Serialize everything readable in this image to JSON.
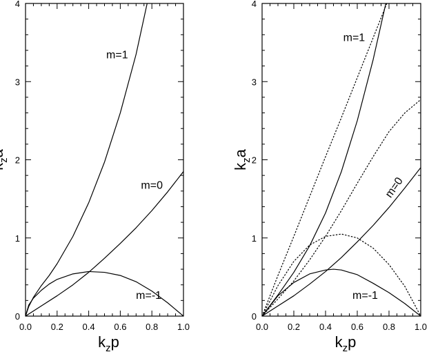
{
  "chart_data": [
    {
      "type": "line",
      "xlabel": {
        "base": "k",
        "sub": "z",
        "rest": "p"
      },
      "ylabel": {
        "base": "k",
        "sub": "z",
        "rest": "a"
      },
      "xlim": [
        0,
        1
      ],
      "ylim": [
        0,
        4
      ],
      "xticks": [
        "0.0",
        "0.2",
        "0.4",
        "0.6",
        "0.8",
        "1.0"
      ],
      "yticks": [
        "0",
        "1",
        "2",
        "3",
        "4"
      ],
      "grid": false,
      "series": [
        {
          "name": "m=1",
          "style": "solid",
          "x": [
            0,
            0.02,
            0.05,
            0.1,
            0.15,
            0.2,
            0.3,
            0.4,
            0.5,
            0.6,
            0.7,
            0.77
          ],
          "y": [
            0,
            0.12,
            0.24,
            0.39,
            0.52,
            0.67,
            1.02,
            1.45,
            1.97,
            2.6,
            3.35,
            4.0
          ]
        },
        {
          "name": "m=0",
          "style": "solid",
          "x": [
            0,
            0.1,
            0.2,
            0.3,
            0.4,
            0.5,
            0.6,
            0.7,
            0.8,
            0.9,
            1.0
          ],
          "y": [
            0,
            0.13,
            0.26,
            0.4,
            0.56,
            0.74,
            0.93,
            1.13,
            1.35,
            1.59,
            1.85
          ]
        },
        {
          "name": "m=-1",
          "style": "solid",
          "x": [
            0,
            0.02,
            0.05,
            0.1,
            0.15,
            0.2,
            0.3,
            0.4,
            0.5,
            0.6,
            0.7,
            0.8,
            0.9,
            1.0
          ],
          "y": [
            0,
            0.14,
            0.23,
            0.33,
            0.41,
            0.47,
            0.54,
            0.57,
            0.56,
            0.52,
            0.44,
            0.32,
            0.17,
            0
          ]
        }
      ],
      "annotations": [
        {
          "text": "m=1",
          "x": 0.58,
          "y": 3.3,
          "rotate": 0
        },
        {
          "text": "m=0",
          "x": 0.8,
          "y": 1.63,
          "rotate": 0
        },
        {
          "text": "m=-1",
          "x": 0.78,
          "y": 0.22,
          "rotate": 0
        }
      ]
    },
    {
      "type": "line",
      "xlabel": {
        "base": "k",
        "sub": "z",
        "rest": "p"
      },
      "ylabel": {
        "base": "k",
        "sub": "z",
        "rest": "a"
      },
      "xlim": [
        0,
        1
      ],
      "ylim": [
        0,
        4
      ],
      "xticks": [
        "0.0",
        "0.2",
        "0.4",
        "0.6",
        "0.8",
        "1.0"
      ],
      "yticks": [
        "0",
        "1",
        "2",
        "3",
        "4"
      ],
      "grid": false,
      "series": [
        {
          "name": "m=1",
          "style": "solid",
          "x": [
            0,
            0.1,
            0.2,
            0.3,
            0.4,
            0.5,
            0.6,
            0.7,
            0.78
          ],
          "y": [
            0,
            0.27,
            0.56,
            0.9,
            1.32,
            1.85,
            2.5,
            3.28,
            4.0
          ]
        },
        {
          "name": "m=0",
          "style": "solid",
          "x": [
            0,
            0.1,
            0.2,
            0.3,
            0.4,
            0.5,
            0.6,
            0.7,
            0.8,
            0.9,
            1.0
          ],
          "y": [
            0,
            0.13,
            0.26,
            0.41,
            0.57,
            0.75,
            0.95,
            1.16,
            1.39,
            1.64,
            1.9
          ]
        },
        {
          "name": "m=-1",
          "style": "solid",
          "x": [
            0,
            0.1,
            0.2,
            0.3,
            0.4,
            0.45,
            0.5,
            0.6,
            0.7,
            0.8,
            0.9,
            1.0
          ],
          "y": [
            0,
            0.26,
            0.43,
            0.54,
            0.59,
            0.6,
            0.59,
            0.53,
            0.42,
            0.3,
            0.16,
            0
          ]
        },
        {
          "style": "dotted",
          "x": [
            0,
            0.1,
            0.2,
            0.3,
            0.4,
            0.5,
            0.6,
            0.7,
            0.8
          ],
          "y": [
            0,
            0.52,
            1.02,
            1.53,
            2.04,
            2.54,
            3.05,
            3.56,
            4.07
          ]
        },
        {
          "style": "dotted",
          "x": [
            0,
            0.1,
            0.2,
            0.3,
            0.4,
            0.5,
            0.6,
            0.7,
            0.8,
            0.9,
            1.0
          ],
          "y": [
            0,
            0.22,
            0.45,
            0.72,
            1.02,
            1.35,
            1.7,
            2.04,
            2.36,
            2.6,
            2.77
          ]
        },
        {
          "style": "dotted",
          "x": [
            0,
            0.1,
            0.2,
            0.3,
            0.4,
            0.5,
            0.6,
            0.7,
            0.8,
            0.9,
            1.0
          ],
          "y": [
            0,
            0.39,
            0.7,
            0.91,
            1.02,
            1.05,
            1.0,
            0.87,
            0.66,
            0.38,
            0
          ]
        }
      ],
      "annotations": [
        {
          "text": "m=1",
          "x": 0.58,
          "y": 3.52,
          "rotate": 0
        },
        {
          "text": "m=0",
          "x": 0.85,
          "y": 1.62,
          "rotate": -55
        },
        {
          "text": "m=-1",
          "x": 0.65,
          "y": 0.22,
          "rotate": 0
        }
      ]
    }
  ]
}
